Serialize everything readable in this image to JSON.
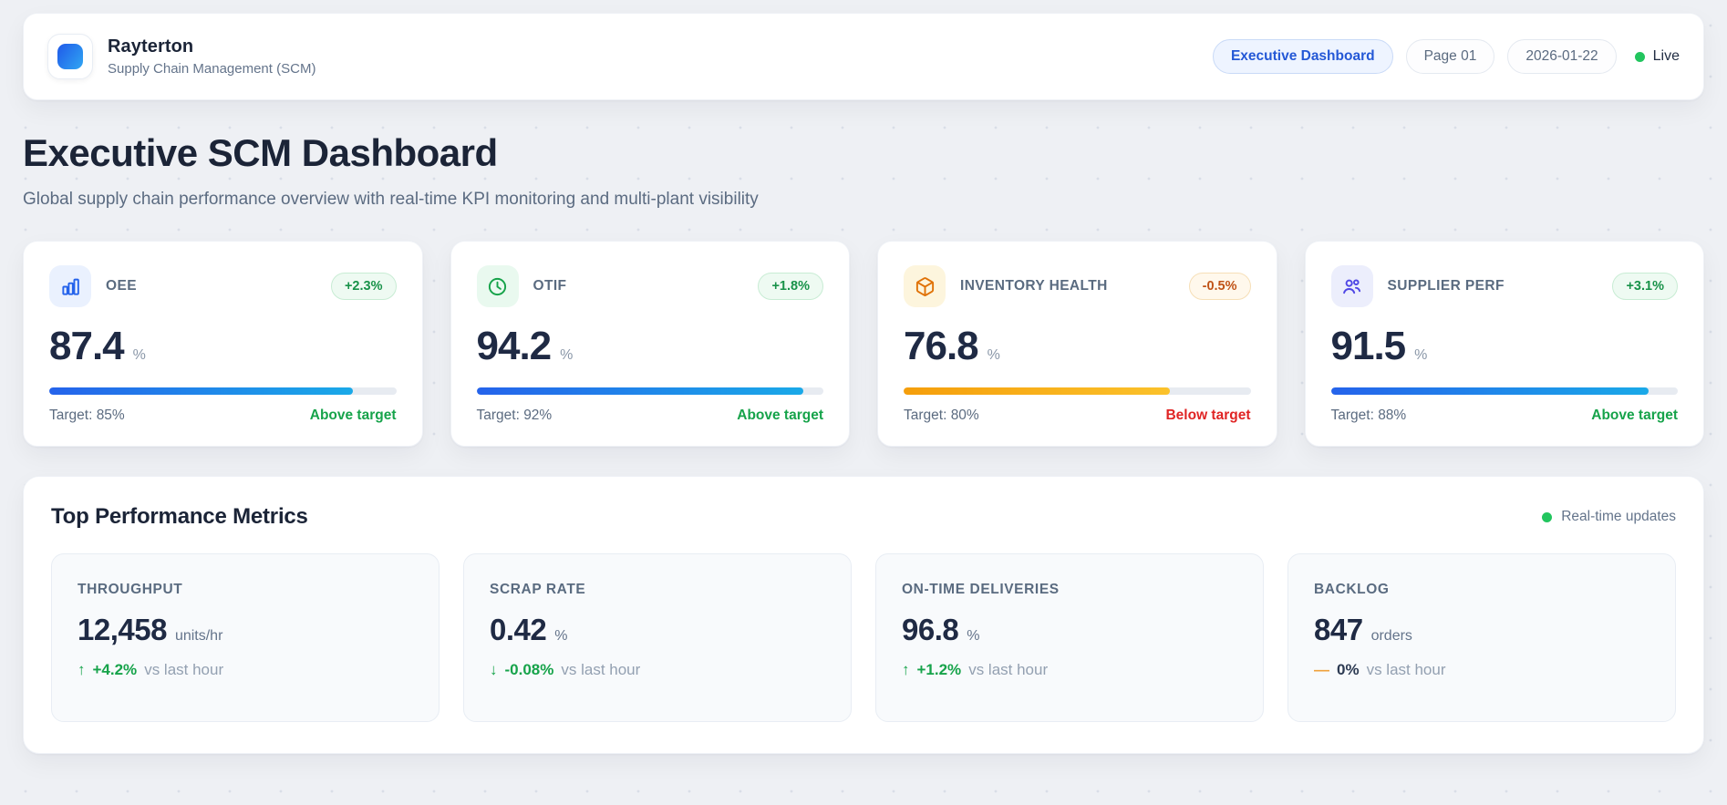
{
  "header": {
    "brand": "Rayterton",
    "subtitle": "Supply Chain Management (SCM)",
    "badge_primary": "Executive Dashboard",
    "badge_page": "Page 01",
    "badge_date": "2026-01-22",
    "live_label": "Live"
  },
  "hero": {
    "title": "Executive SCM Dashboard",
    "subtitle": "Global supply chain performance overview with real-time KPI monitoring and multi-plant visibility"
  },
  "kpi_cards": [
    {
      "label": "OEE",
      "icon": "bar-chart-icon",
      "badge": "+2.3%",
      "badge_tone": "positive",
      "value": "87.4",
      "unit": "%",
      "progress": 87.4,
      "bar": "blue",
      "target": "Target: 85%",
      "status": "Above target",
      "status_tone": "positive"
    },
    {
      "label": "OTIF",
      "icon": "clock-icon",
      "badge": "+1.8%",
      "badge_tone": "positive",
      "value": "94.2",
      "unit": "%",
      "progress": 94.2,
      "bar": "blue",
      "target": "Target: 92%",
      "status": "Above target",
      "status_tone": "positive"
    },
    {
      "label": "INVENTORY HEALTH",
      "icon": "package-icon",
      "badge": "-0.5%",
      "badge_tone": "negative",
      "value": "76.8",
      "unit": "%",
      "progress": 76.8,
      "bar": "amber",
      "target": "Target: 80%",
      "status": "Below target",
      "status_tone": "negative"
    },
    {
      "label": "SUPPLIER PERF",
      "icon": "users-icon",
      "badge": "+3.1%",
      "badge_tone": "positive",
      "value": "91.5",
      "unit": "%",
      "progress": 91.5,
      "bar": "blue",
      "target": "Target: 88%",
      "status": "Above target",
      "status_tone": "positive"
    }
  ],
  "metrics_section": {
    "title": "Top Performance Metrics",
    "status_label": "Real-time updates",
    "metrics": [
      {
        "label": "THROUGHPUT",
        "value": "12,458",
        "unit": "units/hr",
        "delta_arrow": "↑",
        "delta": "+4.2%",
        "delta_tone": "positive",
        "vs": "vs last hour"
      },
      {
        "label": "SCRAP RATE",
        "value": "0.42",
        "unit": "%",
        "delta_arrow": "↓",
        "delta": "-0.08%",
        "delta_tone": "positive",
        "vs": "vs last hour"
      },
      {
        "label": "ON-TIME DELIVERIES",
        "value": "96.8",
        "unit": "%",
        "delta_arrow": "↑",
        "delta": "+1.2%",
        "delta_tone": "positive",
        "vs": "vs last hour"
      },
      {
        "label": "BACKLOG",
        "value": "847",
        "unit": "orders",
        "delta_arrow": "—",
        "delta": "0%",
        "delta_tone": "neutral",
        "vs": "vs last hour"
      }
    ]
  },
  "colors": {
    "accent_blue": "#2563eb",
    "accent_cyan": "#1aa9e8",
    "positive_green": "#16a34a",
    "negative_red": "#e02424",
    "amber": "#f59e0b",
    "live_dot": "#22c55e"
  }
}
